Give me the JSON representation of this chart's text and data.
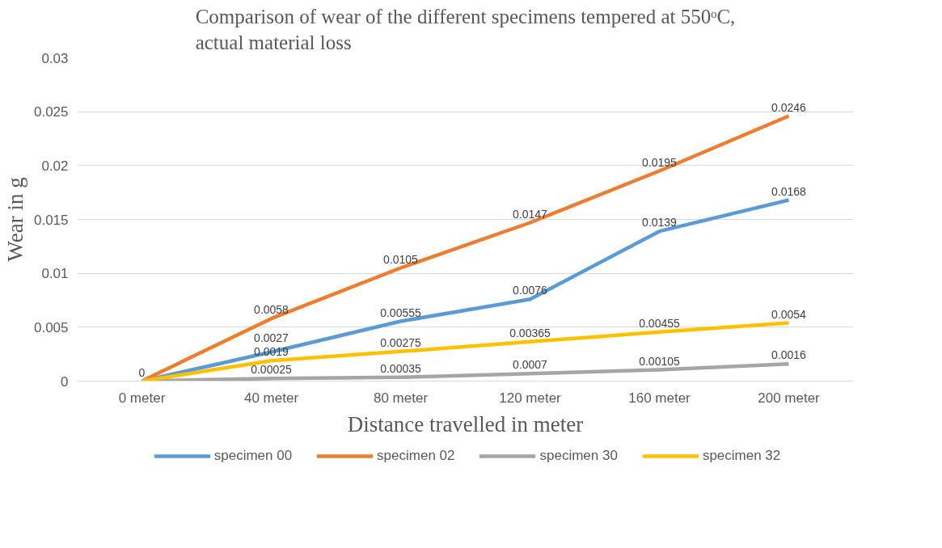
{
  "chart_data": {
    "type": "line",
    "title": "Comparison of wear of the different specimens tempered at 550ᵒC,\nactual material loss",
    "xlabel": "Distance travelled in meter",
    "ylabel": "Wear in g",
    "categories": [
      "0 meter",
      "40 meter",
      "80 meter",
      "120 meter",
      "160 meter",
      "200 meter"
    ],
    "series": [
      {
        "name": "specimen 00",
        "color": "#5b9bd5",
        "values": [
          0,
          0.0027,
          0.00555,
          0.0076,
          0.0139,
          0.0168
        ],
        "value_labels": [
          "0",
          "0.0027",
          "0.00555",
          "0.0076",
          "0.0139",
          "0.0168"
        ]
      },
      {
        "name": "specimen 02",
        "color": "#ed7d31",
        "values": [
          0,
          0.0058,
          0.0105,
          0.0147,
          0.0195,
          0.0246
        ],
        "value_labels": [
          null,
          "0.0058",
          "0.0105",
          "0.0147",
          "0.0195",
          "0.0246"
        ]
      },
      {
        "name": "specimen 30",
        "color": "#a5a5a5",
        "values": [
          0,
          0.00025,
          0.00035,
          0.0007,
          0.00105,
          0.0016
        ],
        "value_labels": [
          null,
          "0.00025",
          "0.00035",
          "0.0007",
          "0.00105",
          "0.0016"
        ]
      },
      {
        "name": "specimen 32",
        "color": "#ffc000",
        "values": [
          0,
          0.0019,
          0.00275,
          0.00365,
          0.00455,
          0.0054
        ],
        "value_labels": [
          null,
          "0.0019",
          "0.00275",
          "0.00365",
          "0.00455",
          "0.0054"
        ]
      }
    ],
    "ylim": [
      0,
      0.03
    ],
    "yticks": [
      0,
      0.005,
      0.01,
      0.015,
      0.02,
      0.025,
      0.03
    ],
    "grid": "y",
    "legend": "bottom",
    "marker": "none",
    "line_style": "solid"
  }
}
